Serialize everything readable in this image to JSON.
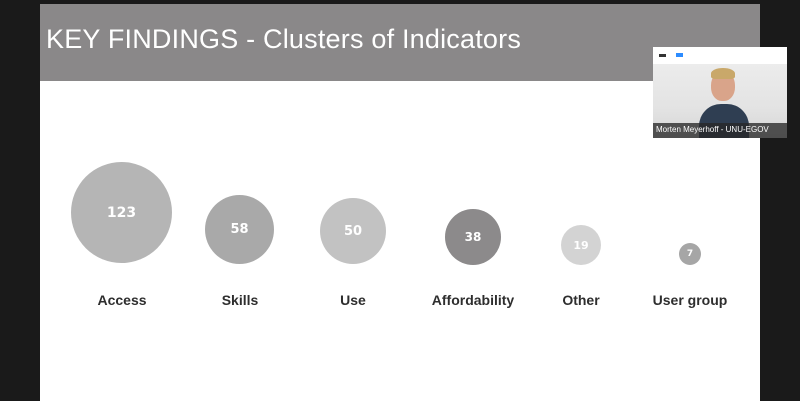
{
  "slide": {
    "title": "KEY FINDINGS - Clusters of Indicators",
    "clusters": [
      {
        "label": "Access",
        "count": "123"
      },
      {
        "label": "Skills",
        "count": "58"
      },
      {
        "label": "Use",
        "count": "50"
      },
      {
        "label": "Affordability",
        "count": "38"
      },
      {
        "label": "Other",
        "count": "19"
      },
      {
        "label": "User group",
        "count": "7"
      }
    ]
  },
  "participant": {
    "name": "Morten Meyerhoff - UNU-EGOV"
  },
  "colors": {
    "header_bg": "#8a8889",
    "bubble_light": "#b5b5b5",
    "bubble_dark": "#8c8a8b",
    "bubble_lighter": "#d3d3d3",
    "accent_blue": "#2d8cff"
  }
}
